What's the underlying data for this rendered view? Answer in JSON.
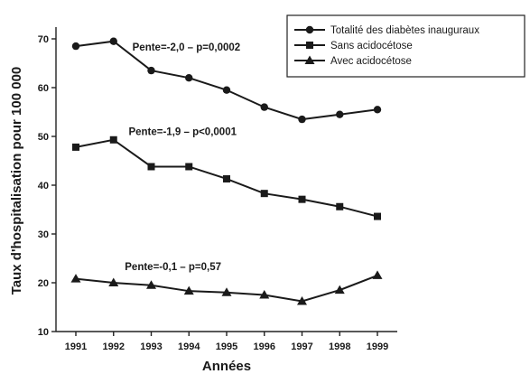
{
  "chart_data": {
    "type": "line",
    "title": "",
    "xlabel": "Années",
    "ylabel": "Taux d'hospitalisation pour 100 000",
    "x": [
      1991,
      1992,
      1993,
      1994,
      1995,
      1996,
      1997,
      1998,
      1999
    ],
    "xlim": [
      1991,
      1999
    ],
    "ylim": [
      10,
      70
    ],
    "yticks": [
      10,
      20,
      30,
      40,
      50,
      60,
      70
    ],
    "grid": false,
    "legend_position": "top-right",
    "series": [
      {
        "name": "Totalité des diabètes inauguraux",
        "marker": "circle",
        "values": [
          68.5,
          69.5,
          63.5,
          62,
          59.5,
          56,
          53.5,
          54.5,
          55.5
        ]
      },
      {
        "name": "Sans acidocétose",
        "marker": "square",
        "values": [
          47.8,
          49.3,
          43.8,
          43.8,
          41.3,
          38.3,
          37.1,
          35.6,
          33.6
        ]
      },
      {
        "name": "Avec acidocétose",
        "marker": "triangle",
        "values": [
          20.8,
          20,
          19.5,
          18.3,
          18,
          17.5,
          16.2,
          18.5,
          21.5
        ]
      }
    ],
    "annotations": [
      {
        "text": "Pente=-2,0 – p=0,0002",
        "x": 1992.5,
        "y": 67.6
      },
      {
        "text": "Pente=-1,9 – p<0,0001",
        "x": 1992.4,
        "y": 50.3
      },
      {
        "text": "Pente=-0,1 – p=0,57",
        "x": 1992.3,
        "y": 22.6
      }
    ]
  }
}
